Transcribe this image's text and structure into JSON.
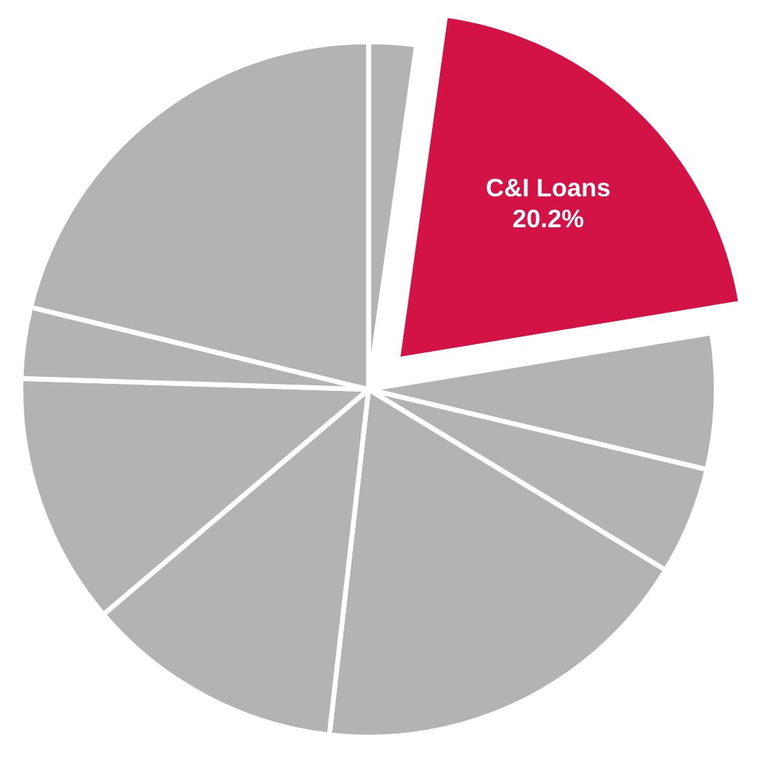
{
  "chart_data": {
    "type": "pie",
    "categories": [
      null,
      "C&I Loans",
      null,
      null,
      null,
      null,
      null,
      null,
      null
    ],
    "values": [
      2.2,
      20.2,
      6.3,
      5.0,
      18.1,
      12.0,
      11.7,
      3.3,
      21.2
    ],
    "value_labels": [
      null,
      "20.2%",
      null,
      null,
      null,
      null,
      null,
      null,
      null
    ],
    "colors": [
      "#b3b3b3",
      "#d31245",
      "#b3b3b3",
      "#b3b3b3",
      "#b3b3b3",
      "#b3b3b3",
      "#b3b3b3",
      "#b3b3b3",
      "#b3b3b3"
    ],
    "legend": false
  }
}
